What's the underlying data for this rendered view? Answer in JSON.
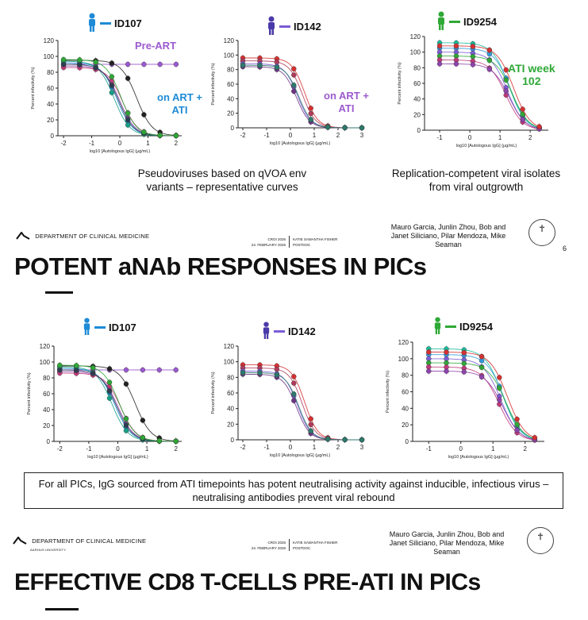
{
  "slide1": {
    "participants": [
      {
        "id": "ID107",
        "color": "#1e8bd6"
      },
      {
        "id": "ID142",
        "color": "#7b5cd6"
      },
      {
        "id": "ID9254",
        "color": "#2fa836"
      }
    ],
    "annotations": {
      "pre_art": "Pre-ART",
      "on_art_ati": "on ART +\nATI",
      "on_art_ati_2": "on ART +\nATI",
      "ati_week": "ATI week\n102"
    },
    "captions": {
      "left": "Pseudoviruses based on qVOA env variants – representative curves",
      "right": "Replication-competent viral isolates from viral outgrowth"
    },
    "footer": {
      "dept": "DEPARTMENT OF CLINICAL MEDICINE",
      "univ": "AARHUS UNIVERSITY",
      "event": "CROI 2026",
      "date": "24. FEBRUARY 2026",
      "author": "KATIE SAMANTHA FISHER",
      "role": "POSTDOC",
      "authors_text": "Mauro Garcia, Junlin Zhou, Bob and Janet Siliciano, Pilar Mendoza, Mike Seaman",
      "page": "6"
    }
  },
  "slide2": {
    "title": "POTENT aNAb RESPONSES IN PICs",
    "participants": [
      {
        "id": "ID107",
        "color": "#1e8bd6"
      },
      {
        "id": "ID142",
        "color": "#7b5cd6"
      },
      {
        "id": "ID9254",
        "color": "#2fa836"
      }
    ],
    "box_text": "For all PICs, IgG sourced from ATI timepoints has potent neutralising activity against inducible, infectious virus – neutralising antibodies prevent viral rebound",
    "footer": {
      "dept": "DEPARTMENT OF CLINICAL MEDICINE",
      "univ": "AARHUS UNIVERSITY",
      "event": "CROI 2026",
      "date": "24. FEBRUARY 2026",
      "author": "KATIE SAMANTHA FISHER",
      "role": "POSTDOC",
      "authors_text": "Mauro Garcia, Junlin Zhou, Bob and Janet Siliciano, Pilar Mendoza, Mike Seaman"
    }
  },
  "slide3": {
    "title": "EFFECTIVE CD8 T-CELLS PRE-ATI IN PICs"
  },
  "chart_data": [
    {
      "type": "scatter",
      "participant": "ID107",
      "xlabel": "log10 [Autologous IgG] (µg/mL)",
      "ylabel": "Percent infectivity (%)",
      "xlim": [
        -2.2,
        2.2
      ],
      "ylim": [
        0,
        120
      ],
      "xticks": [
        -2,
        -1,
        0,
        1,
        2
      ],
      "yticks": [
        0,
        20,
        40,
        60,
        80,
        100,
        120
      ],
      "series": [
        {
          "name": "Pre-ART",
          "color": "#9b59d0",
          "ic50": 99,
          "top": 90
        },
        {
          "name": "black",
          "color": "#222222",
          "ic50": 0.6,
          "top": 95
        },
        {
          "name": "c1",
          "color": "#1e8bd6",
          "ic50": -0.1,
          "top": 92
        },
        {
          "name": "c2",
          "color": "#8e44ad",
          "ic50": 0.0,
          "top": 88
        },
        {
          "name": "c3",
          "color": "#16a085",
          "ic50": -0.2,
          "top": 94
        },
        {
          "name": "c4",
          "color": "#c0397a",
          "ic50": 0.1,
          "top": 86
        },
        {
          "name": "c5",
          "color": "#2c3e50",
          "ic50": -0.05,
          "top": 90
        },
        {
          "name": "c6",
          "color": "#2fa836",
          "ic50": 0.05,
          "top": 96
        }
      ]
    },
    {
      "type": "scatter",
      "participant": "ID142",
      "xlabel": "log10 [Autologous IgG] (µg/mL)",
      "ylabel": "Percent infectivity (%)",
      "xlim": [
        -2.2,
        3
      ],
      "ylim": [
        0,
        120
      ],
      "xticks": [
        -2,
        -1,
        0,
        1,
        2,
        3
      ],
      "yticks": [
        0,
        20,
        40,
        60,
        80,
        100,
        120
      ],
      "series": [
        {
          "name": "r1",
          "color": "#d63031",
          "ic50": 0.6,
          "top": 96
        },
        {
          "name": "r2",
          "color": "#b03a5b",
          "ic50": 0.5,
          "top": 92
        },
        {
          "name": "p1",
          "color": "#7b5cd6",
          "ic50": 0.3,
          "top": 88
        },
        {
          "name": "p2",
          "color": "#6c3483",
          "ic50": 0.25,
          "top": 84
        },
        {
          "name": "g1",
          "color": "#2c7a6b",
          "ic50": 0.35,
          "top": 86
        }
      ]
    },
    {
      "type": "scatter",
      "participant": "ID9254",
      "xlabel": "log10 [Autologous IgG] (µg/mL)",
      "ylabel": "Percent infectivity (%)",
      "xlim": [
        -1.5,
        2.6
      ],
      "ylim": [
        0,
        120
      ],
      "xticks": [
        -1,
        0,
        1,
        2
      ],
      "yticks": [
        0,
        20,
        40,
        60,
        80,
        100,
        120
      ],
      "series": [
        {
          "name": "t1",
          "color": "#1abc9c",
          "ic50": 1.3,
          "top": 112
        },
        {
          "name": "t2",
          "color": "#3498db",
          "ic50": 1.35,
          "top": 105
        },
        {
          "name": "t3",
          "color": "#7b5cd6",
          "ic50": 1.25,
          "top": 100
        },
        {
          "name": "t4",
          "color": "#2fa836",
          "ic50": 1.4,
          "top": 95
        },
        {
          "name": "t5",
          "color": "#c0397a",
          "ic50": 1.2,
          "top": 90
        },
        {
          "name": "t6",
          "color": "#8e44ad",
          "ic50": 1.3,
          "top": 85
        },
        {
          "name": "t7",
          "color": "#d63031",
          "ic50": 1.45,
          "top": 108
        }
      ]
    }
  ]
}
